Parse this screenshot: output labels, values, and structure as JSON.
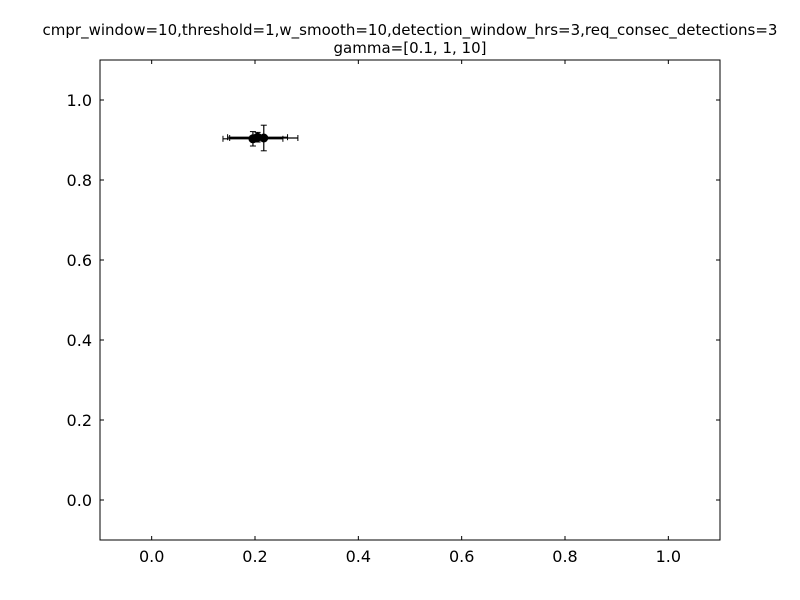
{
  "chart_data": {
    "type": "scatter",
    "title": "cmpr_window=10,threshold=1,w_smooth=10,detection_window_hrs=3,req_consec_detections=3",
    "subtitle": "gamma=[0.1, 1, 10]",
    "xlabel": "",
    "ylabel": "",
    "xlim": [
      -0.1,
      1.1
    ],
    "ylim": [
      -0.1,
      1.1
    ],
    "xticks": [
      0.0,
      0.2,
      0.4,
      0.6,
      0.8,
      1.0
    ],
    "yticks": [
      0.0,
      0.2,
      0.4,
      0.6,
      0.8,
      1.0
    ],
    "xtick_labels": [
      "0.0",
      "0.2",
      "0.4",
      "0.6",
      "0.8",
      "1.0"
    ],
    "ytick_labels": [
      "0.0",
      "0.2",
      "0.4",
      "0.6",
      "0.8",
      "1.0"
    ],
    "grid": false,
    "legend": false,
    "points": [
      {
        "x": 0.196,
        "y": 0.903,
        "xerr": 0.058,
        "yerr": 0.018
      },
      {
        "x": 0.205,
        "y": 0.907,
        "xerr": 0.058,
        "yerr": 0.012
      },
      {
        "x": 0.217,
        "y": 0.905,
        "xerr": 0.066,
        "yerr": 0.032
      }
    ],
    "marker_color": "#000000"
  }
}
